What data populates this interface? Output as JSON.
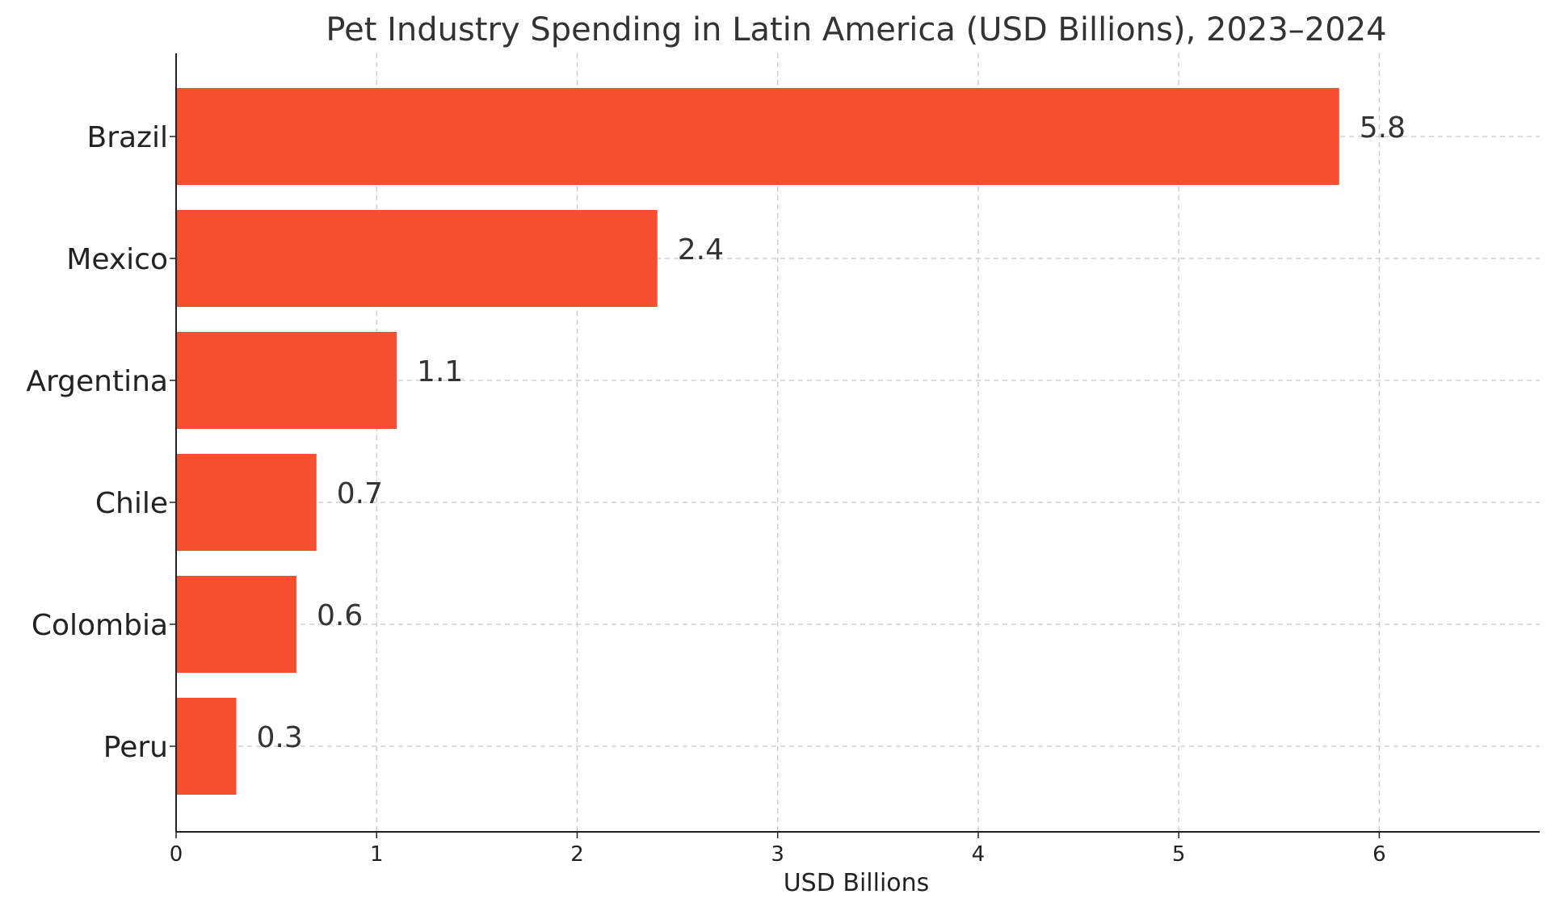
{
  "chart_data": {
    "type": "bar",
    "orientation": "horizontal",
    "title": "Pet Industry Spending in Latin America (USD Billions), 2023–2024",
    "xlabel": "USD Billions",
    "ylabel": "",
    "categories": [
      "Brazil",
      "Mexico",
      "Argentina",
      "Chile",
      "Colombia",
      "Peru"
    ],
    "values": [
      5.8,
      2.4,
      1.1,
      0.7,
      0.6,
      0.3
    ],
    "value_labels": [
      "5.8",
      "2.4",
      "1.1",
      "0.7",
      "0.6",
      "0.3"
    ],
    "xlim": [
      0,
      6.8
    ],
    "xticks": [
      0,
      1,
      2,
      3,
      4,
      5,
      6
    ],
    "xtick_labels": [
      "0",
      "1",
      "2",
      "3",
      "4",
      "5",
      "6"
    ],
    "grid": true,
    "bar_color": "#f4502f",
    "text_color": "#333333"
  }
}
